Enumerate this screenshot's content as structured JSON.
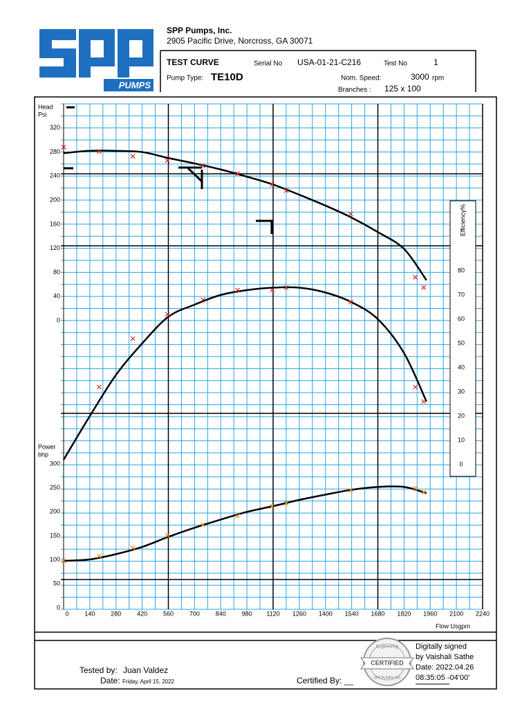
{
  "header": {
    "company": "SPP Pumps, Inc.",
    "address": "2905 Pacific Drive, Norcross, GA 30071",
    "logo_text": "PUMPS",
    "title": "TEST CURVE",
    "serial_label": "Serial No",
    "serial": "USA-01-21-C216",
    "test_no_label": "Test No",
    "test_no": "1",
    "pump_type_label": "Pump Type:",
    "pump_type": "TE10D",
    "speed_label": "Nom. Speed:",
    "speed": "3000",
    "speed_unit": "rpm",
    "branches_label": "Branches :",
    "branches": "125 x 100"
  },
  "chart_data": {
    "type": "line",
    "ylabel": [
      "Head",
      "Psi"
    ],
    "y2label": "Efficiency%",
    "y3label": [
      "Power",
      "bhp"
    ],
    "xlabel": "Flow Usgpm",
    "xlim": [
      0,
      2240
    ],
    "xticks": [
      0,
      140,
      280,
      420,
      560,
      700,
      840,
      980,
      1120,
      1260,
      1400,
      1540,
      1680,
      1820,
      1960,
      2100,
      2240
    ],
    "ylim": [
      0,
      360
    ],
    "yticks": [
      0,
      40,
      80,
      120,
      160,
      200,
      240,
      280,
      320
    ],
    "y2lim": [
      0,
      80
    ],
    "y2ticks": [
      0,
      10,
      20,
      30,
      40,
      50,
      60,
      70,
      80
    ],
    "y3lim": [
      0,
      300
    ],
    "y3ticks": [
      0,
      50,
      100,
      150,
      200,
      250,
      300
    ],
    "grid": true,
    "series": [
      {
        "axis": "y",
        "style": "line",
        "color": "#000000",
        "x": [
          0,
          140,
          280,
          420,
          560,
          700,
          840,
          980,
          1120,
          1260,
          1400,
          1540,
          1680,
          1820,
          1940
        ],
        "values": [
          278,
          282,
          282,
          280,
          270,
          261,
          251,
          239,
          226,
          209,
          191,
          171,
          147,
          119,
          67
        ]
      },
      {
        "axis": "y",
        "style": "markers",
        "color": "#e02020",
        "x": [
          0,
          190,
          370,
          555,
          745,
          930,
          1115,
          1190,
          1535,
          1880,
          1925
        ],
        "values": [
          288,
          281,
          273,
          266,
          257,
          244,
          226,
          216,
          177,
          72,
          55
        ]
      },
      {
        "axis": "y2",
        "style": "line",
        "color": "#000000",
        "x": [
          0,
          140,
          280,
          420,
          560,
          700,
          840,
          980,
          1120,
          1260,
          1400,
          1540,
          1680,
          1820,
          1940
        ],
        "values": [
          2,
          20,
          37,
          50,
          61,
          66,
          70,
          72,
          73,
          73,
          71,
          67,
          60,
          46,
          26
        ]
      },
      {
        "axis": "y2",
        "style": "markers",
        "color": "#e02020",
        "x": [
          0,
          190,
          370,
          555,
          745,
          930,
          1115,
          1190,
          1535,
          1880,
          1925
        ],
        "values": [
          null,
          32,
          52,
          62,
          68,
          72,
          72,
          73,
          67,
          32,
          26
        ]
      },
      {
        "axis": "y3",
        "style": "line",
        "color": "#000000",
        "x": [
          0,
          140,
          280,
          420,
          560,
          700,
          840,
          980,
          1120,
          1260,
          1400,
          1540,
          1680,
          1820,
          1940
        ],
        "values": [
          98,
          101,
          112,
          127,
          148,
          167,
          184,
          200,
          212,
          225,
          236,
          246,
          252,
          252,
          239
        ]
      },
      {
        "axis": "y3",
        "style": "markers",
        "color": "#f08a00",
        "x": [
          0,
          190,
          370,
          555,
          745,
          930,
          1115,
          1190,
          1535,
          1880,
          1925
        ],
        "values": [
          98,
          108,
          125,
          151,
          173,
          192,
          212,
          218,
          245,
          249,
          241
        ]
      }
    ]
  },
  "footer": {
    "tested_by_label": "Tested by:",
    "tested_by": "Juan Valdez",
    "date_label": "Date:",
    "date": "Friday, April 15, 2022",
    "certified_by": "Certified By: __",
    "stamp": {
      "top": "Engineering",
      "center": "CERTIFIED",
      "bottom": "SPP PUMPS INC"
    },
    "signature": [
      "Digitally signed",
      "by Vaishali Sathe",
      "Date: 2022.04.26",
      "08:35:05 -04'00'"
    ]
  }
}
